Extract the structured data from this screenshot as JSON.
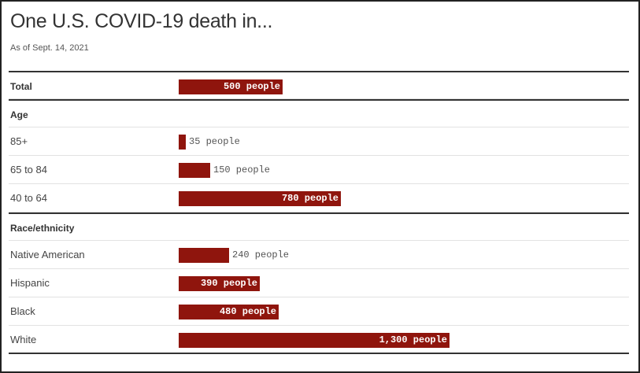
{
  "chart_data": {
    "type": "bar",
    "orientation": "horizontal",
    "title": "One U.S. COVID-19 death in...",
    "subtitle": "As of Sept. 14, 2021",
    "unit": "people",
    "xlim": [
      0,
      1300
    ],
    "colors": {
      "bar": "#8f150d"
    },
    "groups": [
      {
        "heading": "",
        "rows": [
          {
            "label": "Total",
            "value": 500,
            "value_label": "500 people",
            "bold": true
          }
        ]
      },
      {
        "heading": "Age",
        "rows": [
          {
            "label": "85+",
            "value": 35,
            "value_label": "35 people"
          },
          {
            "label": "65 to 84",
            "value": 150,
            "value_label": "150 people"
          },
          {
            "label": "40 to 64",
            "value": 780,
            "value_label": "780 people"
          }
        ]
      },
      {
        "heading": "Race/ethnicity",
        "rows": [
          {
            "label": "Native American",
            "value": 240,
            "value_label": "240 people"
          },
          {
            "label": "Hispanic",
            "value": 390,
            "value_label": "390 people"
          },
          {
            "label": "Black",
            "value": 480,
            "value_label": "480 people"
          },
          {
            "label": "White",
            "value": 1300,
            "value_label": "1,300 people"
          }
        ]
      }
    ]
  }
}
